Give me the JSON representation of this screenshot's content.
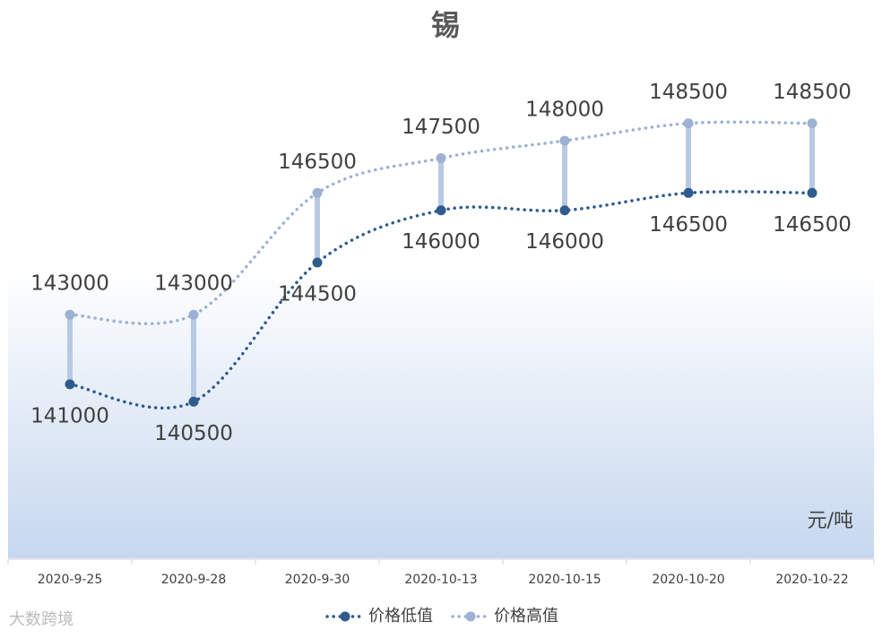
{
  "chart_data": {
    "type": "line",
    "title": "锡",
    "categories": [
      "2020-9-25",
      "2020-9-28",
      "2020-9-30",
      "2020-10-13",
      "2020-10-15",
      "2020-10-20",
      "2020-10-22"
    ],
    "series": [
      {
        "name": "价格低值",
        "color": "#2f5b8e",
        "values": [
          141000,
          140500,
          144500,
          146000,
          146000,
          146500,
          146500
        ]
      },
      {
        "name": "价格高值",
        "color": "#9cb1d4",
        "values": [
          143000,
          143000,
          146500,
          147500,
          148000,
          148500,
          148500
        ]
      }
    ],
    "ylim": [
      136000,
      150500
    ],
    "unit_label": "元/吨",
    "legend": "bottom",
    "watermark": "大数跨境"
  }
}
